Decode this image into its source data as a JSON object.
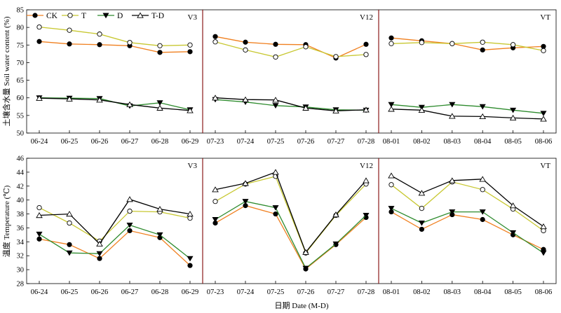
{
  "figure": {
    "xlabel": "日期 Date (M-D)"
  },
  "legend": [
    {
      "name": "CK",
      "color": "#f08020",
      "marker": "filled-circle",
      "marker_color": "#000000"
    },
    {
      "name": "T",
      "color": "#c8c832",
      "marker": "open-circle",
      "marker_color": "#000000"
    },
    {
      "name": "D",
      "color": "#2e8b2e",
      "marker": "filled-triangle-down",
      "marker_color": "#000000"
    },
    {
      "name": "T-D",
      "color": "#000000",
      "marker": "open-triangle-up",
      "marker_color": "#000000"
    }
  ],
  "panel_border_color": "#8b1a1a",
  "chart_data": [
    {
      "type": "line",
      "ylabel": "土壤含水量 Soil water content (%)",
      "ylim": [
        50,
        85
      ],
      "yticks": [
        50,
        55,
        60,
        65,
        70,
        75,
        80,
        85
      ],
      "panels": [
        {
          "label": "V3",
          "categories": [
            "06-24",
            "06-25",
            "06-26",
            "06-27",
            "06-28",
            "06-29"
          ],
          "series": [
            {
              "name": "CK",
              "values": [
                76.0,
                75.3,
                75.1,
                74.8,
                72.9,
                73.1
              ]
            },
            {
              "name": "T",
              "values": [
                80.1,
                79.2,
                78.1,
                75.7,
                74.8,
                75.0
              ]
            },
            {
              "name": "D",
              "values": [
                60.0,
                59.9,
                59.8,
                57.7,
                58.6,
                56.6
              ]
            },
            {
              "name": "T-D",
              "values": [
                59.9,
                59.7,
                59.4,
                58.1,
                57.1,
                56.4
              ]
            }
          ]
        },
        {
          "label": "V12",
          "categories": [
            "07-23",
            "07-24",
            "07-25",
            "07-26",
            "07-27",
            "07-28"
          ],
          "series": [
            {
              "name": "CK",
              "values": [
                77.4,
                75.8,
                75.2,
                75.1,
                71.3,
                75.2
              ]
            },
            {
              "name": "T",
              "values": [
                75.9,
                73.6,
                71.6,
                74.5,
                71.7,
                72.3
              ]
            },
            {
              "name": "D",
              "values": [
                59.5,
                58.8,
                57.8,
                57.4,
                56.6,
                56.5
              ]
            },
            {
              "name": "T-D",
              "values": [
                60.0,
                59.5,
                59.4,
                57.1,
                56.3,
                56.6
              ]
            }
          ]
        },
        {
          "label": "VT",
          "categories": [
            "08-01",
            "08-02",
            "08-03",
            "08-04",
            "08-05",
            "08-06"
          ],
          "series": [
            {
              "name": "CK",
              "values": [
                77.0,
                76.2,
                75.4,
                73.6,
                74.2,
                74.6
              ]
            },
            {
              "name": "T",
              "values": [
                75.4,
                75.7,
                75.4,
                75.8,
                75.1,
                73.4
              ]
            },
            {
              "name": "D",
              "values": [
                58.1,
                57.3,
                58.1,
                57.5,
                56.5,
                55.6
              ]
            },
            {
              "name": "T-D",
              "values": [
                56.8,
                56.5,
                54.8,
                54.7,
                54.3,
                54.0
              ]
            }
          ]
        }
      ]
    },
    {
      "type": "line",
      "ylabel": "温度 Temperature (℃)",
      "ylim": [
        28,
        46
      ],
      "yticks": [
        28,
        30,
        32,
        34,
        36,
        38,
        40,
        42,
        44,
        46
      ],
      "panels": [
        {
          "label": "V3",
          "categories": [
            "06-24",
            "06-25",
            "06-26",
            "06-27",
            "06-28",
            "06-29"
          ],
          "series": [
            {
              "name": "CK",
              "values": [
                34.4,
                33.6,
                31.6,
                35.6,
                34.6,
                30.6
              ]
            },
            {
              "name": "T",
              "values": [
                38.9,
                36.7,
                34.1,
                38.4,
                38.3,
                37.4
              ]
            },
            {
              "name": "D",
              "values": [
                35.1,
                32.4,
                32.3,
                36.4,
                35.0,
                31.6
              ]
            },
            {
              "name": "T-D",
              "values": [
                37.8,
                38.0,
                33.7,
                40.1,
                38.7,
                38.0
              ]
            }
          ]
        },
        {
          "label": "V12",
          "categories": [
            "07-23",
            "07-24",
            "07-25",
            "07-26",
            "07-27",
            "07-28"
          ],
          "series": [
            {
              "name": "CK",
              "values": [
                36.7,
                39.2,
                38.0,
                30.1,
                33.6,
                37.5
              ]
            },
            {
              "name": "T",
              "values": [
                39.8,
                42.3,
                43.4,
                32.4,
                37.8,
                42.3
              ]
            },
            {
              "name": "D",
              "values": [
                37.2,
                39.8,
                38.9,
                30.2,
                33.7,
                37.8
              ]
            },
            {
              "name": "T-D",
              "values": [
                41.5,
                42.4,
                44.0,
                32.5,
                37.9,
                42.8
              ]
            }
          ]
        },
        {
          "label": "VT",
          "categories": [
            "08-01",
            "08-02",
            "08-03",
            "08-04",
            "08-05",
            "08-06"
          ],
          "series": [
            {
              "name": "CK",
              "values": [
                38.3,
                35.8,
                37.9,
                37.2,
                35.0,
                32.9
              ]
            },
            {
              "name": "T",
              "values": [
                42.2,
                38.8,
                42.6,
                41.5,
                38.7,
                35.6
              ]
            },
            {
              "name": "D",
              "values": [
                38.8,
                36.7,
                38.3,
                38.3,
                35.3,
                32.4
              ]
            },
            {
              "name": "T-D",
              "values": [
                43.5,
                41.0,
                42.8,
                43.0,
                39.2,
                36.2
              ]
            }
          ]
        }
      ]
    }
  ]
}
